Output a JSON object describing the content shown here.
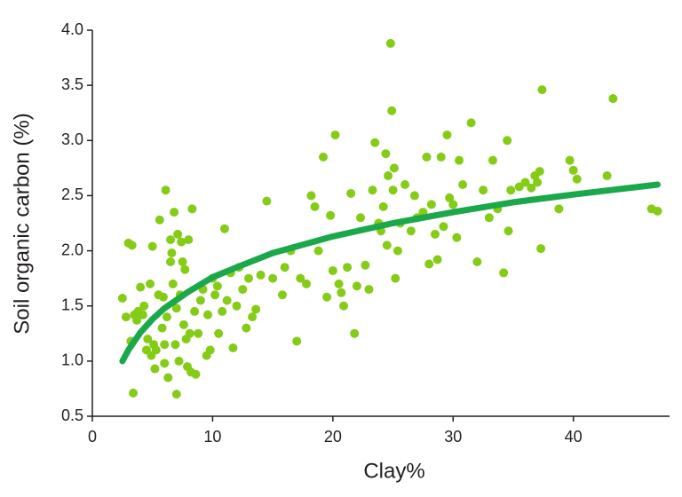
{
  "chart_data": {
    "type": "scatter",
    "x_label": "Clay%",
    "y_label": "Soil organic carbon (%)",
    "xlim": [
      0,
      48
    ],
    "ylim": [
      0.5,
      4.0
    ],
    "xticks": [
      0,
      10,
      20,
      30,
      40
    ],
    "yticks": [
      0.5,
      {
        "value": 1.0,
        "label": "1.0"
      },
      1.5,
      {
        "value": 2.0,
        "label": "2.0"
      },
      2.5,
      {
        "value": 3.0,
        "label": "3.0"
      },
      3.5,
      {
        "value": 4.0,
        "label": "4.0"
      }
    ],
    "series": [
      {
        "type": "scatter",
        "color": "#84cc16",
        "x": [
          2.5,
          2.8,
          3.0,
          3.3,
          3.4,
          3.2,
          3.5,
          3.7,
          3.8,
          4.0,
          4.2,
          4.3,
          4.5,
          4.6,
          4.8,
          4.9,
          5.0,
          5.1,
          5.2,
          5.3,
          5.5,
          5.6,
          5.8,
          5.9,
          6.0,
          6.0,
          6.1,
          6.2,
          6.3,
          6.5,
          6.5,
          6.6,
          6.7,
          6.8,
          6.9,
          7.0,
          7.0,
          7.1,
          7.2,
          7.3,
          7.4,
          7.5,
          7.6,
          7.7,
          7.8,
          7.9,
          8.0,
          8.1,
          8.2,
          8.3,
          8.5,
          8.6,
          8.8,
          9.0,
          9.2,
          9.5,
          9.6,
          9.8,
          10.0,
          10.2,
          10.4,
          10.5,
          10.8,
          11.0,
          11.2,
          11.5,
          11.7,
          12.0,
          12.2,
          12.5,
          12.8,
          13.0,
          13.3,
          13.6,
          14.0,
          14.5,
          15.0,
          15.8,
          16.0,
          16.5,
          17.0,
          17.3,
          17.8,
          18.2,
          18.5,
          18.8,
          19.2,
          19.5,
          19.8,
          20.0,
          20.2,
          20.5,
          20.7,
          20.9,
          21.2,
          21.5,
          21.8,
          22.0,
          22.3,
          22.7,
          23.0,
          23.3,
          23.5,
          23.8,
          24.0,
          24.2,
          24.4,
          24.5,
          24.6,
          24.8,
          24.9,
          25.0,
          25.1,
          25.2,
          25.4,
          25.6,
          26.0,
          26.5,
          26.8,
          27.0,
          27.5,
          27.8,
          28.0,
          28.2,
          28.5,
          28.7,
          29.0,
          29.2,
          29.5,
          29.7,
          30.0,
          30.3,
          30.5,
          30.8,
          31.5,
          32.0,
          32.5,
          33.0,
          33.3,
          33.7,
          34.2,
          34.5,
          34.6,
          34.8,
          35.5,
          36.0,
          36.5,
          36.8,
          37.0,
          37.2,
          37.3,
          37.4,
          38.8,
          39.7,
          40.0,
          40.3,
          42.8,
          43.3,
          46.5,
          47.0
        ],
        "values": [
          1.57,
          1.4,
          2.07,
          2.05,
          0.71,
          1.18,
          1.42,
          1.37,
          1.45,
          1.67,
          1.42,
          1.5,
          1.1,
          1.2,
          1.7,
          1.05,
          2.04,
          1.15,
          0.93,
          1.1,
          1.6,
          2.28,
          1.3,
          1.58,
          1.15,
          0.98,
          2.55,
          1.4,
          0.85,
          1.9,
          2.1,
          1.98,
          1.7,
          2.35,
          1.15,
          0.7,
          1.48,
          2.15,
          1.0,
          1.6,
          2.08,
          1.9,
          1.33,
          1.83,
          1.2,
          0.95,
          2.1,
          1.25,
          0.9,
          2.38,
          1.45,
          0.88,
          1.25,
          1.55,
          1.65,
          1.05,
          1.42,
          1.1,
          1.75,
          1.6,
          1.68,
          1.25,
          1.45,
          2.2,
          1.55,
          1.8,
          1.12,
          1.5,
          1.85,
          1.65,
          1.3,
          1.75,
          1.4,
          1.47,
          1.78,
          2.45,
          1.75,
          1.6,
          1.85,
          2.0,
          1.18,
          1.75,
          1.7,
          2.5,
          2.4,
          2.0,
          2.85,
          1.58,
          2.32,
          1.82,
          3.05,
          1.7,
          1.62,
          1.5,
          1.85,
          2.52,
          1.25,
          1.68,
          2.3,
          1.87,
          1.65,
          2.55,
          2.98,
          2.25,
          2.18,
          2.4,
          2.88,
          2.05,
          2.68,
          3.88,
          3.27,
          2.55,
          2.75,
          1.75,
          2.0,
          2.25,
          2.6,
          2.18,
          2.5,
          2.3,
          2.35,
          2.85,
          1.88,
          2.42,
          2.15,
          1.92,
          2.85,
          2.22,
          3.05,
          2.48,
          2.42,
          2.12,
          2.82,
          2.6,
          3.16,
          1.9,
          2.55,
          2.3,
          2.82,
          2.38,
          1.8,
          3.0,
          2.18,
          2.55,
          2.58,
          2.62,
          2.57,
          2.68,
          2.62,
          2.72,
          2.02,
          3.46,
          2.38,
          2.82,
          2.73,
          2.65,
          2.68,
          3.38,
          2.38,
          2.36
        ]
      },
      {
        "type": "line",
        "color": "#1aa84a",
        "x": [
          2.5,
          3,
          4,
          5,
          6,
          8,
          10,
          12,
          15,
          20,
          25,
          30,
          35,
          40,
          47
        ],
        "values": [
          1.0,
          1.1,
          1.26,
          1.38,
          1.48,
          1.63,
          1.76,
          1.85,
          1.98,
          2.13,
          2.25,
          2.35,
          2.44,
          2.51,
          2.6
        ]
      }
    ]
  }
}
